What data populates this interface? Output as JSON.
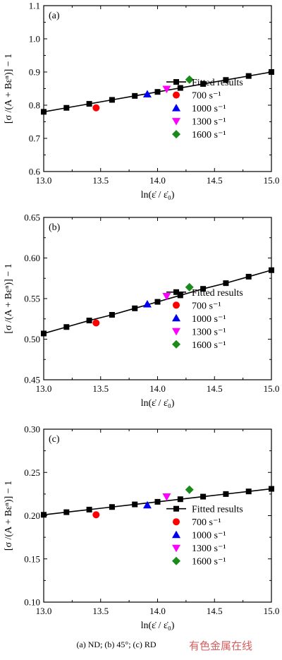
{
  "caption": "(a) ND; (b) 45°; (c) RD",
  "watermark": "有色金属在线",
  "colors": {
    "fit": "#000000",
    "s700": "#ff0000",
    "s1000": "#0000ee",
    "s1300": "#ff00ff",
    "s1600": "#1a8a1a"
  },
  "chart_data": [
    {
      "type": "line",
      "panel_label": "(a)",
      "xlabel": "ln(ε̇ / ε̇₀)",
      "ylabel": "[σ /(A + Bεⁿ)] − 1",
      "xlim": [
        13.0,
        15.0
      ],
      "ylim": [
        0.6,
        1.1
      ],
      "xticks": [
        "13.0",
        "13.5",
        "14.0",
        "14.5",
        "15.0"
      ],
      "yticks": [
        "0.6",
        "0.7",
        "0.8",
        "0.9",
        "1.0",
        "1.1"
      ],
      "grid": false,
      "legend_position": "bottom-right",
      "series": [
        {
          "name": "Fitted results",
          "marker": "square",
          "color": "#000000",
          "line": true,
          "x": [
            13.0,
            13.2,
            13.4,
            13.6,
            13.8,
            14.0,
            14.2,
            14.4,
            14.6,
            14.8,
            15.0
          ],
          "y": [
            0.78,
            0.792,
            0.804,
            0.816,
            0.828,
            0.84,
            0.852,
            0.864,
            0.876,
            0.888,
            0.9
          ]
        },
        {
          "name": "700 s⁻¹",
          "marker": "circle",
          "color": "#ff0000",
          "line": false,
          "x": [
            13.46
          ],
          "y": [
            0.792
          ]
        },
        {
          "name": "1000 s⁻¹",
          "marker": "triangle-up",
          "color": "#0000ee",
          "line": false,
          "x": [
            13.91
          ],
          "y": [
            0.833
          ]
        },
        {
          "name": "1300 s⁻¹",
          "marker": "triangle-down",
          "color": "#ff00ff",
          "line": false,
          "x": [
            14.08
          ],
          "y": [
            0.849
          ]
        },
        {
          "name": "1600 s⁻¹",
          "marker": "diamond",
          "color": "#1a8a1a",
          "line": false,
          "x": [
            14.28
          ],
          "y": [
            0.877
          ]
        }
      ]
    },
    {
      "type": "line",
      "panel_label": "(b)",
      "xlabel": "ln(ε̇ / ε̇₀)",
      "ylabel": "[σ /(A + Bεⁿ)] − 1",
      "xlim": [
        13.0,
        15.0
      ],
      "ylim": [
        0.45,
        0.65
      ],
      "xticks": [
        "13.0",
        "13.5",
        "14.0",
        "14.5",
        "15.0"
      ],
      "yticks": [
        "0.45",
        "0.50",
        "0.55",
        "0.60",
        "0.65"
      ],
      "grid": false,
      "legend_position": "bottom-right",
      "series": [
        {
          "name": "Fitted results",
          "marker": "square",
          "color": "#000000",
          "line": true,
          "x": [
            13.0,
            13.2,
            13.4,
            13.6,
            13.8,
            14.0,
            14.2,
            14.4,
            14.6,
            14.8,
            15.0
          ],
          "y": [
            0.507,
            0.515,
            0.523,
            0.53,
            0.538,
            0.546,
            0.554,
            0.562,
            0.569,
            0.577,
            0.585
          ]
        },
        {
          "name": "700 s⁻¹",
          "marker": "circle",
          "color": "#ff0000",
          "line": false,
          "x": [
            13.46
          ],
          "y": [
            0.52
          ]
        },
        {
          "name": "1000 s⁻¹",
          "marker": "triangle-up",
          "color": "#0000ee",
          "line": false,
          "x": [
            13.91
          ],
          "y": [
            0.543
          ]
        },
        {
          "name": "1300 s⁻¹",
          "marker": "triangle-down",
          "color": "#ff00ff",
          "line": false,
          "x": [
            14.08
          ],
          "y": [
            0.553
          ]
        },
        {
          "name": "1600 s⁻¹",
          "marker": "diamond",
          "color": "#1a8a1a",
          "line": false,
          "x": [
            14.28
          ],
          "y": [
            0.564
          ]
        }
      ]
    },
    {
      "type": "line",
      "panel_label": "(c)",
      "xlabel": "ln(ε̇ / ε̇₀)",
      "ylabel": "[σ /(A + Bεⁿ)] − 1",
      "xlim": [
        13.0,
        15.0
      ],
      "ylim": [
        0.1,
        0.3
      ],
      "xticks": [
        "13.0",
        "13.5",
        "14.0",
        "14.5",
        "15.0"
      ],
      "yticks": [
        "0.10",
        "0.15",
        "0.20",
        "0.25",
        "0.30"
      ],
      "grid": false,
      "legend_position": "bottom-right",
      "series": [
        {
          "name": "Fitted results",
          "marker": "square",
          "color": "#000000",
          "line": true,
          "x": [
            13.0,
            13.2,
            13.4,
            13.6,
            13.8,
            14.0,
            14.2,
            14.4,
            14.6,
            14.8,
            15.0
          ],
          "y": [
            0.201,
            0.204,
            0.207,
            0.21,
            0.213,
            0.216,
            0.219,
            0.222,
            0.225,
            0.228,
            0.231
          ]
        },
        {
          "name": "700 s⁻¹",
          "marker": "circle",
          "color": "#ff0000",
          "line": false,
          "x": [
            13.46
          ],
          "y": [
            0.201
          ]
        },
        {
          "name": "1000 s⁻¹",
          "marker": "triangle-up",
          "color": "#0000ee",
          "line": false,
          "x": [
            13.91
          ],
          "y": [
            0.212
          ]
        },
        {
          "name": "1300 s⁻¹",
          "marker": "triangle-down",
          "color": "#ff00ff",
          "line": false,
          "x": [
            14.08
          ],
          "y": [
            0.222
          ]
        },
        {
          "name": "1600 s⁻¹",
          "marker": "diamond",
          "color": "#1a8a1a",
          "line": false,
          "x": [
            14.28
          ],
          "y": [
            0.23
          ]
        }
      ]
    }
  ]
}
